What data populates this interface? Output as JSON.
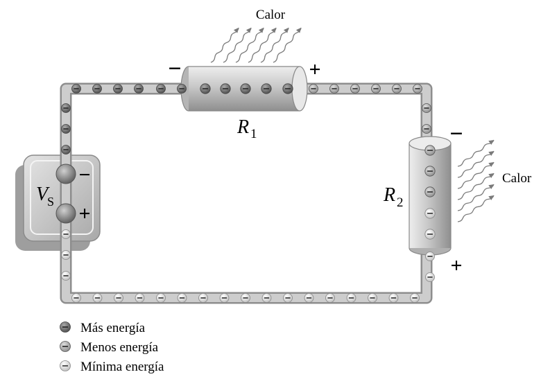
{
  "labels": {
    "heat_top": "Calor",
    "heat_right": "Calor",
    "r1_letter": "R",
    "r1_sub": "1",
    "r2_letter": "R",
    "r2_sub": "2",
    "vs_letter": "V",
    "vs_sub": "S"
  },
  "polarity": {
    "r1_left": "−",
    "r1_right": "+",
    "r2_top": "−",
    "r2_bottom": "+",
    "vs_top": "−",
    "vs_bottom": "+"
  },
  "legend": [
    {
      "label": "Más energía",
      "level": "high"
    },
    {
      "label": "Menos energía",
      "level": "medium"
    },
    {
      "label": "Mínima energía",
      "level": "low"
    }
  ],
  "colors": {
    "electron_high": "#6f6f6f",
    "electron_medium": "#a6a6a6",
    "electron_low": "#dcdcdc",
    "wire": "#c4c4c4",
    "resistor_body": "#d2d2d2",
    "battery_body": "#cfcfcf"
  }
}
